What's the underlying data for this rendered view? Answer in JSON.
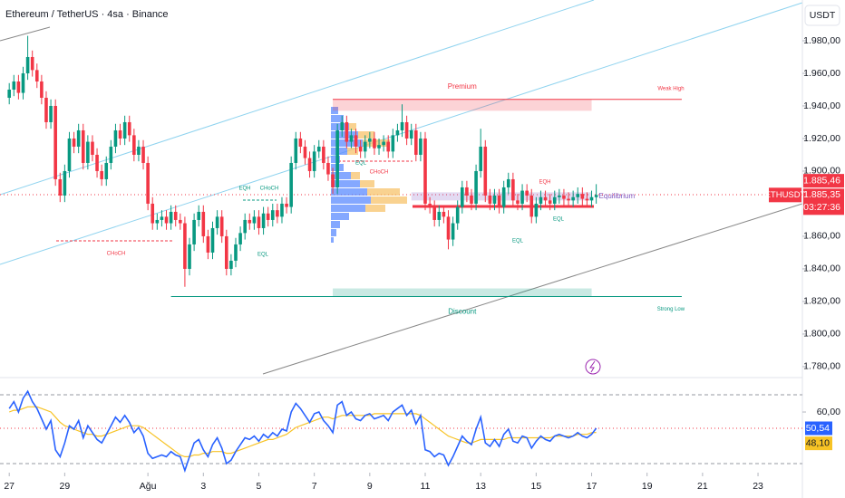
{
  "chart_data": [
    {
      "type": "candlestick",
      "title": "Ethereum / TetherUS · 4sa · Binance",
      "currency": "USDT",
      "symbol": "ETHUSDT",
      "up_color": "#089981",
      "down_color": "#f23645",
      "open": [
        1945,
        1950,
        1955,
        1948,
        1960,
        1970,
        1962,
        1955,
        1945,
        1930,
        1940,
        1895,
        1885,
        1900,
        1920,
        1915,
        1925,
        1905,
        1918,
        1910,
        1900,
        1895,
        1905,
        1915,
        1925,
        1920,
        1930,
        1922,
        1910,
        1915,
        1905,
        1880,
        1868,
        1870,
        1872,
        1868,
        1875,
        1870,
        1868,
        1840,
        1855,
        1870,
        1875,
        1860,
        1850,
        1865,
        1872,
        1860,
        1840,
        1845,
        1855,
        1862,
        1870,
        1868,
        1872,
        1865,
        1874,
        1870,
        1876,
        1872,
        1880,
        1878,
        1905,
        1920,
        1915,
        1908,
        1900,
        1912,
        1915,
        1905,
        1898,
        1890,
        1925,
        1930,
        1918,
        1922,
        1915,
        1912,
        1918,
        1920,
        1914,
        1916,
        1918,
        1912,
        1922,
        1925,
        1930,
        1920,
        1925,
        1910,
        1920,
        1880,
        1878,
        1870,
        1875,
        1872,
        1858,
        1868,
        1878,
        1890,
        1885,
        1880,
        1900,
        1915,
        1885,
        1880,
        1885,
        1878,
        1890,
        1895,
        1882,
        1880,
        1888,
        1885,
        1872,
        1880,
        1884,
        1882,
        1880,
        1884,
        1885,
        1883,
        1882,
        1884,
        1886,
        1883,
        1882,
        1884
      ],
      "high": [
        1954,
        1959,
        1959,
        1964,
        1983,
        1974,
        1966,
        1959,
        1949,
        1944,
        1944,
        1899,
        1904,
        1924,
        1924,
        1929,
        1929,
        1922,
        1922,
        1914,
        1904,
        1909,
        1919,
        1929,
        1929,
        1934,
        1934,
        1926,
        1919,
        1919,
        1909,
        1884,
        1874,
        1876,
        1876,
        1879,
        1879,
        1874,
        1872,
        1859,
        1874,
        1879,
        1879,
        1864,
        1869,
        1876,
        1876,
        1864,
        1849,
        1859,
        1866,
        1874,
        1874,
        1876,
        1876,
        1878,
        1878,
        1880,
        1880,
        1884,
        1884,
        1909,
        1924,
        1924,
        1919,
        1912,
        1916,
        1919,
        1919,
        1909,
        1902,
        1929,
        1934,
        1934,
        1926,
        1926,
        1919,
        1922,
        1924,
        1924,
        1920,
        1922,
        1922,
        1926,
        1929,
        1941,
        1934,
        1929,
        1929,
        1924,
        1924,
        1884,
        1882,
        1879,
        1879,
        1876,
        1872,
        1882,
        1894,
        1894,
        1889,
        1904,
        1926,
        1919,
        1889,
        1889,
        1889,
        1894,
        1899,
        1899,
        1886,
        1892,
        1892,
        1889,
        1884,
        1888,
        1888,
        1886,
        1888,
        1889,
        1889,
        1887,
        1888,
        1890,
        1890,
        1887,
        1888,
        1892
      ],
      "low": [
        1941,
        1946,
        1944,
        1944,
        1956,
        1958,
        1951,
        1941,
        1926,
        1926,
        1891,
        1881,
        1881,
        1896,
        1911,
        1911,
        1901,
        1901,
        1906,
        1896,
        1891,
        1891,
        1901,
        1911,
        1916,
        1916,
        1918,
        1906,
        1906,
        1901,
        1876,
        1864,
        1864,
        1866,
        1864,
        1864,
        1866,
        1864,
        1829,
        1836,
        1851,
        1866,
        1856,
        1846,
        1846,
        1861,
        1856,
        1836,
        1836,
        1841,
        1851,
        1858,
        1864,
        1864,
        1861,
        1861,
        1866,
        1866,
        1868,
        1868,
        1874,
        1874,
        1901,
        1911,
        1904,
        1896,
        1896,
        1908,
        1901,
        1894,
        1886,
        1886,
        1921,
        1914,
        1914,
        1911,
        1908,
        1908,
        1914,
        1910,
        1910,
        1912,
        1908,
        1908,
        1918,
        1921,
        1916,
        1916,
        1906,
        1906,
        1876,
        1874,
        1866,
        1866,
        1868,
        1852,
        1854,
        1864,
        1874,
        1881,
        1876,
        1876,
        1896,
        1881,
        1876,
        1876,
        1874,
        1874,
        1886,
        1878,
        1876,
        1876,
        1881,
        1868,
        1868,
        1876,
        1878,
        1876,
        1876,
        1880,
        1879,
        1878,
        1878,
        1880,
        1879,
        1878,
        1878,
        1880
      ],
      "close": [
        1950,
        1955,
        1948,
        1960,
        1970,
        1962,
        1955,
        1945,
        1930,
        1940,
        1895,
        1885,
        1900,
        1920,
        1915,
        1925,
        1905,
        1918,
        1910,
        1900,
        1895,
        1905,
        1915,
        1925,
        1920,
        1930,
        1922,
        1910,
        1915,
        1905,
        1880,
        1868,
        1870,
        1872,
        1868,
        1875,
        1870,
        1868,
        1840,
        1855,
        1870,
        1875,
        1860,
        1850,
        1865,
        1872,
        1860,
        1840,
        1845,
        1855,
        1862,
        1870,
        1868,
        1872,
        1865,
        1874,
        1870,
        1876,
        1872,
        1880,
        1878,
        1905,
        1920,
        1915,
        1908,
        1900,
        1912,
        1915,
        1905,
        1898,
        1890,
        1925,
        1930,
        1918,
        1922,
        1915,
        1912,
        1918,
        1920,
        1914,
        1916,
        1918,
        1912,
        1922,
        1925,
        1930,
        1920,
        1925,
        1910,
        1920,
        1880,
        1878,
        1870,
        1875,
        1872,
        1858,
        1868,
        1878,
        1890,
        1885,
        1880,
        1900,
        1915,
        1885,
        1880,
        1885,
        1878,
        1890,
        1895,
        1882,
        1880,
        1888,
        1885,
        1872,
        1880,
        1884,
        1882,
        1880,
        1884,
        1885,
        1883,
        1882,
        1884,
        1886,
        1883,
        1882,
        1884,
        1885.35
      ],
      "xlim": [
        -2,
        171.6
      ],
      "xticks": [
        {
          "value": 0,
          "label": "27"
        },
        {
          "value": 12,
          "label": "29"
        },
        {
          "value": 30,
          "label": "Ağu"
        },
        {
          "value": 42,
          "label": "3"
        },
        {
          "value": 54,
          "label": "5"
        },
        {
          "value": 66,
          "label": "7"
        },
        {
          "value": 78,
          "label": "9"
        },
        {
          "value": 90,
          "label": "11"
        },
        {
          "value": 102,
          "label": "13"
        },
        {
          "value": 114,
          "label": "15"
        },
        {
          "value": 126,
          "label": "17"
        },
        {
          "value": 138,
          "label": "19"
        },
        {
          "value": 150,
          "label": "21"
        },
        {
          "value": 162,
          "label": "23"
        }
      ],
      "ylim": [
        1774.4,
        2005
      ],
      "yticks": [
        {
          "value": 1980,
          "label": "1.980,00"
        },
        {
          "value": 1960,
          "label": "1.960,00"
        },
        {
          "value": 1940,
          "label": "1.940,00"
        },
        {
          "value": 1920,
          "label": "1.920,00"
        },
        {
          "value": 1900,
          "label": "1.900,00"
        },
        {
          "value": 1860,
          "label": "1.860,00"
        },
        {
          "value": 1840,
          "label": "1.840,00"
        },
        {
          "value": 1820,
          "label": "1.820,00"
        },
        {
          "value": 1800,
          "label": "1.800,00"
        },
        {
          "value": 1780,
          "label": "1.780,00"
        }
      ],
      "price_labels": [
        {
          "value": 1885.46,
          "label": "1.885,46"
        },
        {
          "value": 1885.35,
          "label": "1.885,35"
        }
      ],
      "countdown": "03:27:36",
      "zones": [
        {
          "name": "Premium",
          "top": 1944,
          "bottom": 1937,
          "from": 70,
          "to": 126,
          "color": "#f23645"
        },
        {
          "name": "Discount",
          "top": 1828,
          "bottom": 1823,
          "from": 70,
          "to": 126,
          "color": "#089981"
        },
        {
          "name": "Equilibrium",
          "top": 1887,
          "bottom": 1882,
          "from": 87,
          "to": 126,
          "color": "#7e57c2"
        }
      ],
      "levels": [
        {
          "name": "Weak High",
          "value": 1944,
          "from": 70,
          "to": 145.5,
          "color": "#f23645"
        },
        {
          "name": "Strong Low",
          "value": 1823,
          "from": 35,
          "to": 145.5,
          "color": "#089981"
        }
      ],
      "annotations": [
        "CHoCH",
        "EQH",
        "CHoCH",
        "EQL",
        "EQL",
        "CHoCH",
        "EQH",
        "EQL",
        "EQL"
      ]
    },
    {
      "type": "line",
      "ylim": [
        25.8,
        79.5
      ],
      "yticks": [
        {
          "value": 60,
          "label": "60,00"
        }
      ],
      "series": [
        {
          "color": "#2962ff",
          "values": [
            62,
            66,
            60,
            68,
            72,
            66,
            62,
            56,
            50,
            55,
            38,
            34,
            42,
            52,
            50,
            55,
            45,
            52,
            48,
            44,
            42,
            47,
            52,
            57,
            54,
            58,
            54,
            48,
            51,
            46,
            36,
            33,
            34,
            35,
            34,
            37,
            35,
            34,
            26,
            34,
            42,
            44,
            38,
            34,
            41,
            45,
            39,
            30,
            32,
            37,
            41,
            45,
            44,
            46,
            43,
            47,
            45,
            48,
            46,
            50,
            49,
            60,
            65,
            62,
            58,
            54,
            59,
            60,
            55,
            52,
            48,
            64,
            66,
            58,
            60,
            56,
            55,
            58,
            59,
            56,
            57,
            58,
            55,
            60,
            62,
            64,
            58,
            61,
            53,
            58,
            38,
            37,
            34,
            36,
            35,
            29,
            34,
            40,
            46,
            43,
            41,
            50,
            57,
            42,
            40,
            44,
            40,
            47,
            50,
            43,
            42,
            46,
            45,
            39,
            43,
            46,
            44,
            43,
            46,
            47,
            46,
            45,
            46,
            48,
            46,
            45,
            47,
            50.54
          ],
          "end_label": {
            "value": 50.54,
            "label": "50,54"
          }
        },
        {
          "color": "#f7c325",
          "values": [
            60,
            61,
            61,
            62,
            63,
            63,
            63,
            62,
            61,
            60,
            57,
            54,
            52,
            51,
            50,
            49,
            48,
            47,
            47,
            46,
            46,
            47,
            48,
            49,
            50,
            51,
            52,
            52,
            52,
            51,
            49,
            47,
            45,
            43,
            41,
            39,
            37,
            35,
            34,
            34,
            35,
            35,
            36,
            36,
            37,
            37,
            37,
            36,
            36,
            37,
            38,
            39,
            40,
            41,
            42,
            43,
            44,
            44,
            45,
            46,
            47,
            49,
            51,
            52,
            53,
            54,
            55,
            56,
            57,
            57,
            56,
            57,
            58,
            58,
            58,
            58,
            58,
            58,
            58,
            59,
            59,
            59,
            59,
            59,
            59,
            59,
            59,
            59,
            59,
            58,
            56,
            54,
            52,
            50,
            48,
            46,
            45,
            44,
            43,
            42,
            42,
            43,
            44,
            44,
            44,
            44,
            44,
            44,
            45,
            45,
            45,
            45,
            45,
            45,
            45,
            45,
            45,
            45,
            46,
            46,
            46,
            46,
            46,
            47,
            47,
            47,
            48,
            48.1
          ],
          "end_label": {
            "value": 48.1,
            "label": "48,10"
          }
        }
      ]
    }
  ]
}
